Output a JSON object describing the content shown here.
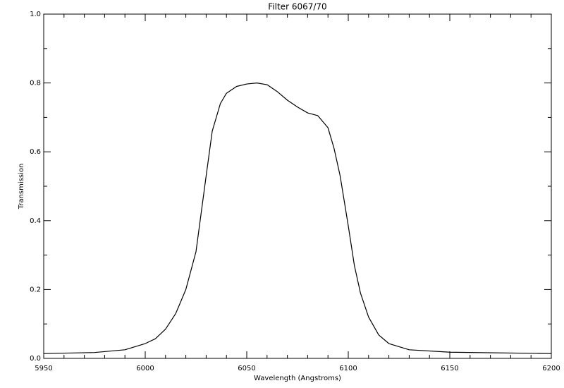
{
  "chart_data": {
    "type": "line",
    "title": "Filter 6067/70",
    "x_label": "Wavelength (Angstroms)",
    "y_label": "Transmission",
    "x": [
      5950,
      5975,
      5990,
      6000,
      6005,
      6010,
      6015,
      6020,
      6025,
      6030,
      6033,
      6037,
      6040,
      6045,
      6050,
      6055,
      6060,
      6065,
      6070,
      6075,
      6080,
      6085,
      6090,
      6093,
      6096,
      6100,
      6103,
      6106,
      6110,
      6115,
      6120,
      6130,
      6150,
      6200
    ],
    "series": [
      {
        "name": "Transmission",
        "color": "#000000",
        "values": [
          0.014,
          0.017,
          0.025,
          0.043,
          0.057,
          0.085,
          0.13,
          0.2,
          0.31,
          0.53,
          0.66,
          0.74,
          0.77,
          0.79,
          0.797,
          0.8,
          0.795,
          0.775,
          0.75,
          0.73,
          0.713,
          0.705,
          0.67,
          0.61,
          0.53,
          0.385,
          0.27,
          0.19,
          0.12,
          0.068,
          0.043,
          0.025,
          0.018,
          0.014
        ]
      }
    ],
    "xlim": [
      5950,
      6200
    ],
    "xticks": [
      5950,
      6000,
      6050,
      6100,
      6150,
      6200
    ],
    "ylim": [
      0,
      1
    ],
    "yticks": [
      {
        "value": 0,
        "label": "0.0"
      },
      0.2,
      0.4,
      0.6,
      0.8,
      {
        "value": 1,
        "label": "1.0"
      }
    ]
  }
}
